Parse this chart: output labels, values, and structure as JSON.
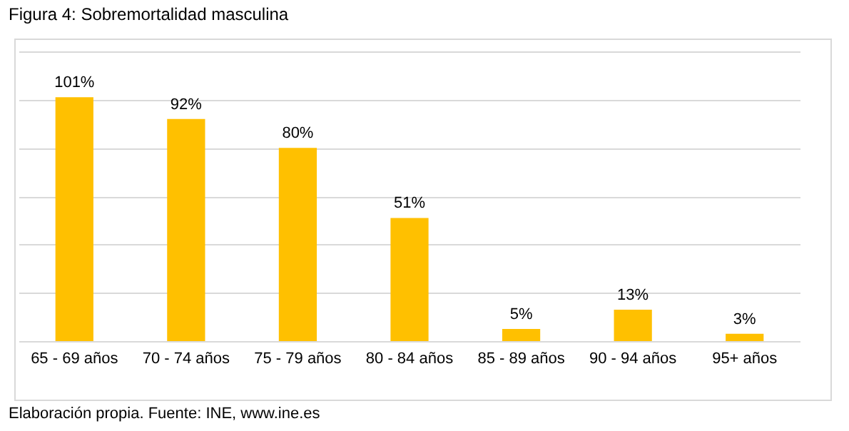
{
  "chart_data": {
    "type": "bar",
    "title": "Figura 4: Sobremortalidad masculina",
    "categories": [
      "65 - 69 años",
      "70 - 74 años",
      "75 - 79 años",
      "80 - 84 años",
      "85 - 89 años",
      "90 - 94 años",
      "95+ años"
    ],
    "values": [
      101,
      92,
      80,
      51,
      5,
      13,
      3
    ],
    "value_labels": [
      "101%",
      "92%",
      "80%",
      "51%",
      "5%",
      "13%",
      "3%"
    ],
    "color": "#ffc000",
    "ylim": [
      0,
      120
    ],
    "yticks": [
      {
        "value": 0,
        "label": null
      },
      {
        "value": 20,
        "label": null
      },
      {
        "value": 40,
        "label": null
      },
      {
        "value": 60,
        "label": null
      },
      {
        "value": 80,
        "label": null
      },
      {
        "value": 100,
        "label": null
      },
      {
        "value": 120,
        "label": null
      }
    ],
    "grid": "y",
    "tick_labels": "x",
    "annotations": [
      "Elaboración propia. Fuente: INE, www.ine.es"
    ]
  }
}
